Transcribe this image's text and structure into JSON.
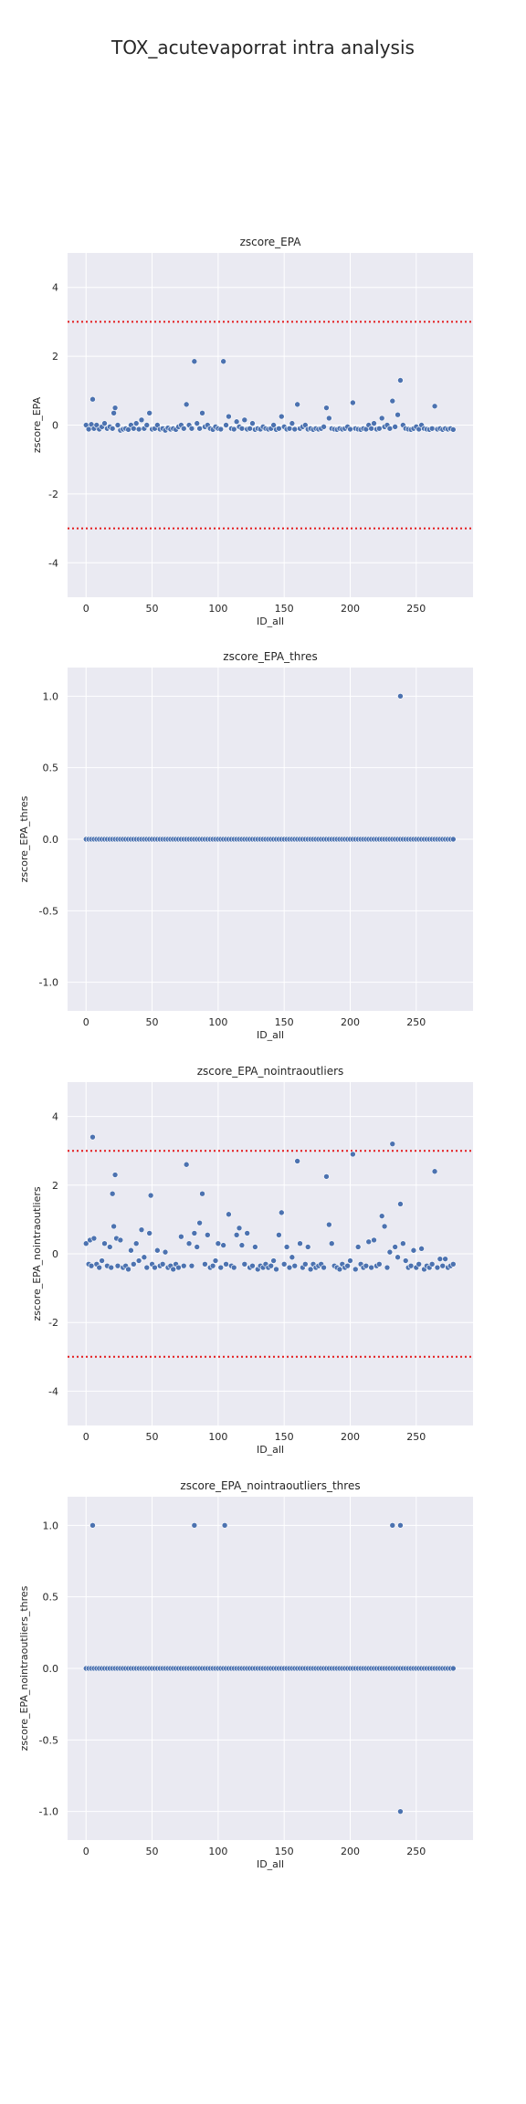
{
  "suptitle": "TOX_acutevaporrat intra analysis",
  "colors": {
    "point": "#4c72b0",
    "threshold": "#e41a1c",
    "plot_bg": "#eaeaf2",
    "grid": "#ffffff"
  },
  "chart_data": [
    {
      "type": "scatter",
      "title": "zscore_EPA",
      "xlabel": "ID_all",
      "ylabel": "zscore_EPA",
      "xlim": [
        -14,
        293
      ],
      "ylim": [
        -5,
        5
      ],
      "xticks": [
        0,
        50,
        100,
        150,
        200,
        250
      ],
      "yticks": [
        -4,
        -2,
        0,
        2,
        4
      ],
      "hlines": [
        3,
        -3
      ],
      "grid": true,
      "points": [
        [
          0,
          0.0
        ],
        [
          2,
          -0.12
        ],
        [
          4,
          0.02
        ],
        [
          5,
          0.75
        ],
        [
          6,
          -0.1
        ],
        [
          8,
          0.0
        ],
        [
          10,
          -0.12
        ],
        [
          12,
          -0.05
        ],
        [
          14,
          0.05
        ],
        [
          16,
          -0.1
        ],
        [
          18,
          -0.05
        ],
        [
          20,
          -0.1
        ],
        [
          21,
          0.35
        ],
        [
          22,
          0.5
        ],
        [
          24,
          0.0
        ],
        [
          26,
          -0.15
        ],
        [
          28,
          -0.12
        ],
        [
          30,
          -0.1
        ],
        [
          32,
          -0.13
        ],
        [
          34,
          0.0
        ],
        [
          36,
          -0.1
        ],
        [
          38,
          0.05
        ],
        [
          40,
          -0.12
        ],
        [
          42,
          0.15
        ],
        [
          44,
          -0.1
        ],
        [
          46,
          0.0
        ],
        [
          48,
          0.35
        ],
        [
          50,
          -0.12
        ],
        [
          52,
          -0.1
        ],
        [
          54,
          0.0
        ],
        [
          56,
          -0.12
        ],
        [
          58,
          -0.1
        ],
        [
          60,
          -0.15
        ],
        [
          62,
          -0.08
        ],
        [
          64,
          -0.12
        ],
        [
          66,
          -0.1
        ],
        [
          68,
          -0.13
        ],
        [
          70,
          -0.05
        ],
        [
          72,
          0.0
        ],
        [
          74,
          -0.1
        ],
        [
          76,
          0.6
        ],
        [
          78,
          0.0
        ],
        [
          80,
          -0.1
        ],
        [
          82,
          1.85
        ],
        [
          84,
          0.05
        ],
        [
          86,
          -0.1
        ],
        [
          88,
          0.35
        ],
        [
          90,
          -0.05
        ],
        [
          92,
          0.0
        ],
        [
          94,
          -0.1
        ],
        [
          96,
          -0.13
        ],
        [
          98,
          -0.05
        ],
        [
          100,
          -0.1
        ],
        [
          102,
          -0.12
        ],
        [
          104,
          1.85
        ],
        [
          106,
          0.0
        ],
        [
          108,
          0.25
        ],
        [
          110,
          -0.1
        ],
        [
          112,
          -0.12
        ],
        [
          114,
          0.1
        ],
        [
          116,
          -0.05
        ],
        [
          118,
          -0.1
        ],
        [
          120,
          0.15
        ],
        [
          122,
          -0.12
        ],
        [
          124,
          -0.1
        ],
        [
          126,
          0.05
        ],
        [
          128,
          -0.13
        ],
        [
          130,
          -0.1
        ],
        [
          132,
          -0.12
        ],
        [
          134,
          -0.05
        ],
        [
          136,
          -0.1
        ],
        [
          138,
          -0.12
        ],
        [
          140,
          -0.1
        ],
        [
          142,
          0.0
        ],
        [
          144,
          -0.13
        ],
        [
          146,
          -0.1
        ],
        [
          148,
          0.25
        ],
        [
          150,
          -0.05
        ],
        [
          152,
          -0.12
        ],
        [
          154,
          -0.1
        ],
        [
          156,
          0.05
        ],
        [
          158,
          -0.12
        ],
        [
          160,
          0.6
        ],
        [
          162,
          -0.1
        ],
        [
          164,
          -0.05
        ],
        [
          166,
          0.0
        ],
        [
          168,
          -0.12
        ],
        [
          170,
          -0.1
        ],
        [
          172,
          -0.13
        ],
        [
          174,
          -0.1
        ],
        [
          176,
          -0.12
        ],
        [
          178,
          -0.1
        ],
        [
          180,
          -0.05
        ],
        [
          182,
          0.5
        ],
        [
          184,
          0.2
        ],
        [
          186,
          -0.1
        ],
        [
          188,
          -0.12
        ],
        [
          190,
          -0.13
        ],
        [
          192,
          -0.1
        ],
        [
          194,
          -0.12
        ],
        [
          196,
          -0.1
        ],
        [
          198,
          -0.05
        ],
        [
          200,
          -0.12
        ],
        [
          202,
          0.65
        ],
        [
          204,
          -0.1
        ],
        [
          206,
          -0.12
        ],
        [
          208,
          -0.13
        ],
        [
          210,
          -0.1
        ],
        [
          212,
          -0.12
        ],
        [
          214,
          0.0
        ],
        [
          216,
          -0.1
        ],
        [
          218,
          0.05
        ],
        [
          220,
          -0.12
        ],
        [
          222,
          -0.1
        ],
        [
          224,
          0.2
        ],
        [
          226,
          -0.05
        ],
        [
          228,
          0.0
        ],
        [
          230,
          -0.1
        ],
        [
          232,
          0.7
        ],
        [
          234,
          -0.05
        ],
        [
          236,
          0.3
        ],
        [
          238,
          1.3
        ],
        [
          240,
          0.0
        ],
        [
          242,
          -0.1
        ],
        [
          244,
          -0.12
        ],
        [
          246,
          -0.13
        ],
        [
          248,
          -0.1
        ],
        [
          250,
          -0.05
        ],
        [
          252,
          -0.12
        ],
        [
          254,
          0.0
        ],
        [
          256,
          -0.1
        ],
        [
          258,
          -0.12
        ],
        [
          260,
          -0.13
        ],
        [
          262,
          -0.1
        ],
        [
          264,
          0.55
        ],
        [
          266,
          -0.12
        ],
        [
          268,
          -0.1
        ],
        [
          270,
          -0.13
        ],
        [
          272,
          -0.1
        ],
        [
          274,
          -0.12
        ],
        [
          276,
          -0.1
        ],
        [
          278,
          -0.13
        ]
      ]
    },
    {
      "type": "scatter",
      "title": "zscore_EPA_thres",
      "xlabel": "ID_all",
      "ylabel": "zscore_EPA_thres",
      "xlim": [
        -14,
        293
      ],
      "ylim": [
        -1.2,
        1.2
      ],
      "xticks": [
        0,
        50,
        100,
        150,
        200,
        250
      ],
      "yticks": [
        -1.0,
        -0.5,
        0.0,
        0.5,
        1.0
      ],
      "hlines": [],
      "grid": true,
      "baseline": {
        "from": 0,
        "to": 279,
        "step": 2,
        "y": 0.0
      },
      "points": [
        [
          238,
          1.0
        ]
      ]
    },
    {
      "type": "scatter",
      "title": "zscore_EPA_nointraoutliers",
      "xlabel": "ID_all",
      "ylabel": "zscore_EPA_nointraoutliers",
      "xlim": [
        -14,
        293
      ],
      "ylim": [
        -5,
        5
      ],
      "xticks": [
        0,
        50,
        100,
        150,
        200,
        250
      ],
      "yticks": [
        -4,
        -2,
        0,
        2,
        4
      ],
      "hlines": [
        3,
        -3
      ],
      "grid": true,
      "points": [
        [
          0,
          0.3
        ],
        [
          2,
          -0.3
        ],
        [
          3,
          0.4
        ],
        [
          4,
          -0.35
        ],
        [
          5,
          3.4
        ],
        [
          6,
          0.45
        ],
        [
          8,
          -0.3
        ],
        [
          10,
          -0.4
        ],
        [
          12,
          -0.2
        ],
        [
          14,
          0.3
        ],
        [
          16,
          -0.35
        ],
        [
          18,
          0.2
        ],
        [
          19,
          -0.4
        ],
        [
          20,
          1.75
        ],
        [
          21,
          0.8
        ],
        [
          22,
          2.3
        ],
        [
          23,
          0.45
        ],
        [
          24,
          -0.35
        ],
        [
          26,
          0.4
        ],
        [
          28,
          -0.4
        ],
        [
          30,
          -0.35
        ],
        [
          32,
          -0.45
        ],
        [
          34,
          0.1
        ],
        [
          36,
          -0.3
        ],
        [
          38,
          0.3
        ],
        [
          40,
          -0.2
        ],
        [
          42,
          0.7
        ],
        [
          44,
          -0.1
        ],
        [
          46,
          -0.4
        ],
        [
          48,
          0.6
        ],
        [
          49,
          1.7
        ],
        [
          50,
          -0.3
        ],
        [
          52,
          -0.4
        ],
        [
          54,
          0.1
        ],
        [
          56,
          -0.35
        ],
        [
          58,
          -0.3
        ],
        [
          60,
          0.05
        ],
        [
          62,
          -0.4
        ],
        [
          64,
          -0.35
        ],
        [
          66,
          -0.45
        ],
        [
          68,
          -0.3
        ],
        [
          70,
          -0.4
        ],
        [
          72,
          0.5
        ],
        [
          74,
          -0.35
        ],
        [
          76,
          2.6
        ],
        [
          78,
          0.3
        ],
        [
          80,
          -0.35
        ],
        [
          82,
          0.6
        ],
        [
          84,
          0.2
        ],
        [
          86,
          0.9
        ],
        [
          88,
          1.75
        ],
        [
          90,
          -0.3
        ],
        [
          92,
          0.55
        ],
        [
          94,
          -0.4
        ],
        [
          96,
          -0.35
        ],
        [
          98,
          -0.2
        ],
        [
          100,
          0.3
        ],
        [
          102,
          -0.4
        ],
        [
          104,
          0.25
        ],
        [
          106,
          -0.3
        ],
        [
          108,
          1.15
        ],
        [
          110,
          -0.35
        ],
        [
          112,
          -0.4
        ],
        [
          114,
          0.55
        ],
        [
          116,
          0.75
        ],
        [
          118,
          0.25
        ],
        [
          120,
          -0.3
        ],
        [
          122,
          0.6
        ],
        [
          124,
          -0.4
        ],
        [
          126,
          -0.35
        ],
        [
          128,
          0.2
        ],
        [
          130,
          -0.45
        ],
        [
          132,
          -0.35
        ],
        [
          134,
          -0.4
        ],
        [
          136,
          -0.3
        ],
        [
          138,
          -0.4
        ],
        [
          140,
          -0.35
        ],
        [
          142,
          -0.2
        ],
        [
          144,
          -0.45
        ],
        [
          146,
          0.55
        ],
        [
          148,
          1.2
        ],
        [
          150,
          -0.3
        ],
        [
          152,
          0.2
        ],
        [
          154,
          -0.4
        ],
        [
          156,
          -0.1
        ],
        [
          158,
          -0.35
        ],
        [
          160,
          2.7
        ],
        [
          162,
          0.3
        ],
        [
          164,
          -0.4
        ],
        [
          166,
          -0.3
        ],
        [
          168,
          0.2
        ],
        [
          170,
          -0.45
        ],
        [
          172,
          -0.3
        ],
        [
          174,
          -0.4
        ],
        [
          176,
          -0.35
        ],
        [
          178,
          -0.3
        ],
        [
          180,
          -0.4
        ],
        [
          182,
          2.25
        ],
        [
          184,
          0.85
        ],
        [
          186,
          0.3
        ],
        [
          188,
          -0.35
        ],
        [
          190,
          -0.4
        ],
        [
          192,
          -0.45
        ],
        [
          194,
          -0.3
        ],
        [
          196,
          -0.4
        ],
        [
          198,
          -0.35
        ],
        [
          200,
          -0.2
        ],
        [
          202,
          2.9
        ],
        [
          204,
          -0.45
        ],
        [
          206,
          0.2
        ],
        [
          208,
          -0.3
        ],
        [
          210,
          -0.4
        ],
        [
          212,
          -0.35
        ],
        [
          214,
          0.35
        ],
        [
          216,
          -0.4
        ],
        [
          218,
          0.4
        ],
        [
          220,
          -0.35
        ],
        [
          222,
          -0.3
        ],
        [
          224,
          1.1
        ],
        [
          226,
          0.8
        ],
        [
          228,
          -0.4
        ],
        [
          230,
          0.05
        ],
        [
          232,
          3.2
        ],
        [
          234,
          0.2
        ],
        [
          236,
          -0.1
        ],
        [
          238,
          1.45
        ],
        [
          240,
          0.3
        ],
        [
          242,
          -0.2
        ],
        [
          244,
          -0.4
        ],
        [
          246,
          -0.35
        ],
        [
          248,
          0.1
        ],
        [
          250,
          -0.4
        ],
        [
          252,
          -0.3
        ],
        [
          254,
          0.15
        ],
        [
          256,
          -0.45
        ],
        [
          258,
          -0.35
        ],
        [
          260,
          -0.4
        ],
        [
          262,
          -0.3
        ],
        [
          264,
          2.4
        ],
        [
          266,
          -0.4
        ],
        [
          268,
          -0.15
        ],
        [
          270,
          -0.35
        ],
        [
          272,
          -0.15
        ],
        [
          274,
          -0.4
        ],
        [
          276,
          -0.35
        ],
        [
          278,
          -0.3
        ]
      ]
    },
    {
      "type": "scatter",
      "title": "zscore_EPA_nointraoutliers_thres",
      "xlabel": "ID_all",
      "ylabel": "zscore_EPA_nointraoutliers_thres",
      "xlim": [
        -14,
        293
      ],
      "ylim": [
        -1.2,
        1.2
      ],
      "xticks": [
        0,
        50,
        100,
        150,
        200,
        250
      ],
      "yticks": [
        -1.0,
        -0.5,
        0.0,
        0.5,
        1.0
      ],
      "hlines": [],
      "grid": true,
      "baseline": {
        "from": 0,
        "to": 279,
        "step": 2,
        "y": 0.0
      },
      "points": [
        [
          5,
          1.0
        ],
        [
          82,
          1.0
        ],
        [
          105,
          1.0
        ],
        [
          232,
          1.0
        ],
        [
          238,
          1.0
        ],
        [
          238,
          -1.0
        ]
      ]
    }
  ]
}
